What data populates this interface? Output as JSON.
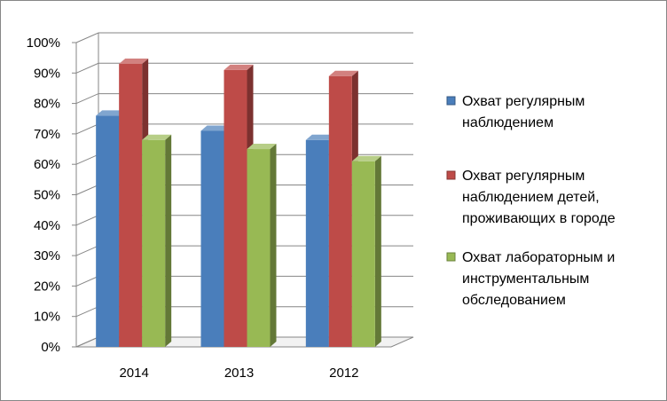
{
  "chart_data": {
    "type": "bar",
    "categories": [
      "2014",
      "2013",
      "2012"
    ],
    "series": [
      {
        "name": "Охват регулярным наблюдением",
        "values": [
          76,
          71,
          68
        ],
        "color": "#4a7ebb"
      },
      {
        "name": "Охват регулярным наблюдением детей, проживающих в городе",
        "values": [
          93,
          91,
          89
        ],
        "color": "#be4b48"
      },
      {
        "name": "Охват лабораторным и инструментальным обследованием",
        "values": [
          68,
          65,
          61
        ],
        "color": "#98b954"
      }
    ],
    "ylim": [
      0,
      100
    ],
    "yticks": [
      "0%",
      "10%",
      "20%",
      "30%",
      "40%",
      "50%",
      "60%",
      "70%",
      "80%",
      "90%",
      "100%"
    ],
    "grid": true,
    "legend_position": "right",
    "legend_lines": [
      [
        "Охват регулярным",
        "наблюдением"
      ],
      [
        "Охват регулярным",
        "наблюдением детей,",
        "проживающих в городе"
      ],
      [
        "Охват лабораторным и",
        "инструментальным",
        "обследованием"
      ]
    ]
  }
}
